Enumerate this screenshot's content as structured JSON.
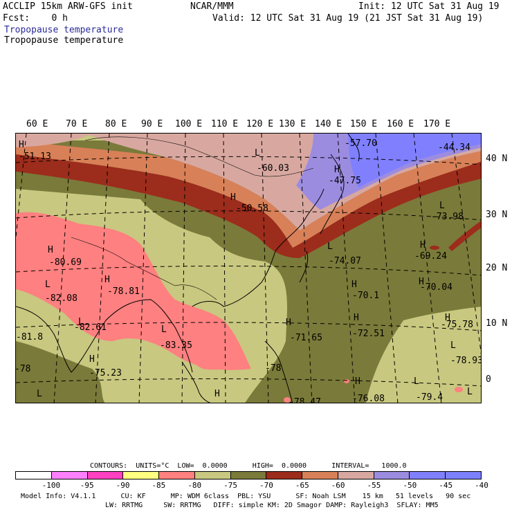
{
  "header": {
    "model": "ACCLIP 15km ARW-GFS init",
    "center": "NCAR/MMM",
    "init": "Init: 12 UTC Sat 31 Aug 19",
    "fcst": "Fcst:    0 h",
    "valid": "Valid: 12 UTC Sat 31 Aug 19 (21 JST Sat 31 Aug 19)",
    "field_blue": "Tropopause temperature",
    "field_black": "Tropopause temperature"
  },
  "lon_labels": [
    "60 E",
    "70 E",
    "80 E",
    "90 E",
    "100 E",
    "110 E",
    "120 E",
    "130 E",
    "140 E",
    "150 E",
    "160 E",
    "170 E"
  ],
  "lat_labels": [
    "40 N",
    "30 N",
    "20 N",
    "10 N",
    "0"
  ],
  "map_labels": [
    {
      "t": "H"
    },
    {
      "t": "-51.13"
    },
    {
      "t": "-57.70"
    },
    {
      "t": "-44.34"
    },
    {
      "t": "L"
    },
    {
      "t": "-60.03"
    },
    {
      "t": "H"
    },
    {
      "t": "-47.75"
    },
    {
      "t": "H"
    },
    {
      "t": "-50.58"
    },
    {
      "t": "L"
    },
    {
      "t": "-73.98"
    },
    {
      "t": "H"
    },
    {
      "t": "-80.69"
    },
    {
      "t": "L"
    },
    {
      "t": "-74.07"
    },
    {
      "t": "H"
    },
    {
      "t": "-69.24"
    },
    {
      "t": "L"
    },
    {
      "t": "-82.08"
    },
    {
      "t": "H"
    },
    {
      "t": "-78.81"
    },
    {
      "t": "H"
    },
    {
      "t": "-70.1"
    },
    {
      "t": "H"
    },
    {
      "t": "-70.04"
    },
    {
      "t": "L"
    },
    {
      "t": "-82.61"
    },
    {
      "t": "L"
    },
    {
      "t": "-83.35"
    },
    {
      "t": "H"
    },
    {
      "t": "-71.65"
    },
    {
      "t": "H"
    },
    {
      "t": "-72.51"
    },
    {
      "t": "H"
    },
    {
      "t": "-75.78"
    },
    {
      "t": "-81.8"
    },
    {
      "t": "H"
    },
    {
      "t": "-75.23"
    },
    {
      "t": "-78"
    },
    {
      "t": "L"
    },
    {
      "t": "-78.93"
    },
    {
      "t": "-78"
    },
    {
      "t": "H"
    },
    {
      "t": "-76.08"
    },
    {
      "t": "L"
    },
    {
      "t": "-79.4"
    },
    {
      "t": "L"
    },
    {
      "t": "H"
    },
    {
      "t": "-78.47"
    },
    {
      "t": "L"
    }
  ],
  "contours": {
    "line": "CONTOURS:  UNITS=°C  LOW=  0.0000      HIGH=  0.0000      INTERVAL=   1000.0"
  },
  "colorbar": {
    "colors": [
      "#ffffff",
      "#ff80ff",
      "#ff40c0",
      "#ffff80",
      "#ff8080",
      "#c8c880",
      "#7a7a3a",
      "#9c2c1c",
      "#d88058",
      "#d8a8a0",
      "#9c8ce0",
      "#8080ff",
      "#7c80ff"
    ],
    "ticks": [
      "-100",
      "-95",
      "-90",
      "-85",
      "-80",
      "-75",
      "-70",
      "-65",
      "-60",
      "-55",
      "-50",
      "-45",
      "-40",
      "°C"
    ]
  },
  "footer": {
    "line1": "Model Info: V4.1.1      CU: KF      MP: WDM 6class  PBL: YSU      SF: Noah LSM    15 km   51 levels   90 sec",
    "line2": "LW: RRTMG     SW: RRTMG   DIFF: simple KM: 2D Smagor DAMP: Rayleigh3  SFLAY: MM5"
  }
}
